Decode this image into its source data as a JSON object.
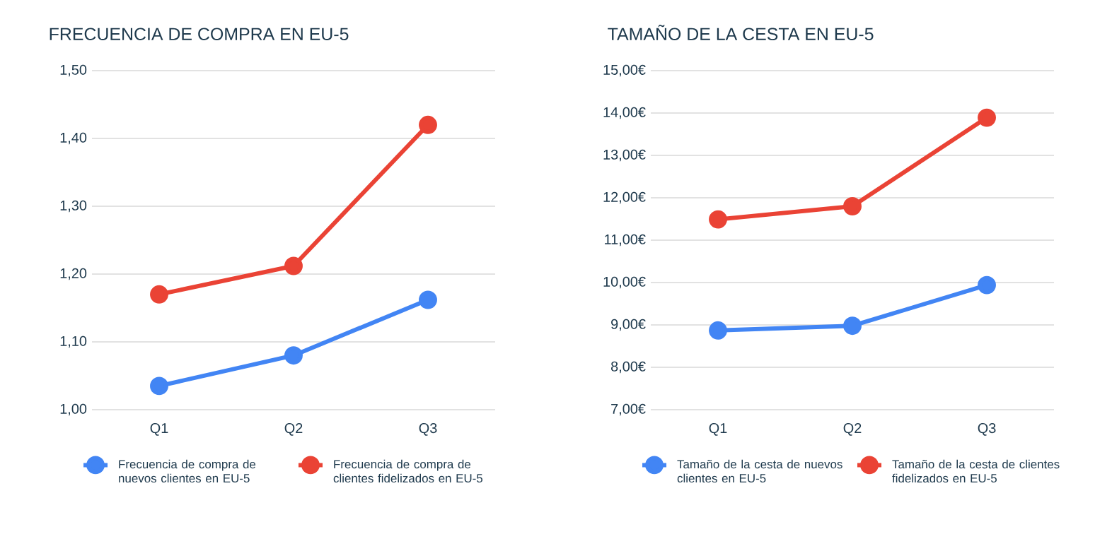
{
  "chart_data": [
    {
      "type": "line",
      "title": "FRECUENCIA DE COMPRA EN EU-5",
      "categories": [
        "Q1",
        "Q2",
        "Q3"
      ],
      "series": [
        {
          "name": "Frecuencia de compra de nuevos clientes en EU-5",
          "color": "#4285f4",
          "values": [
            1.035,
            1.08,
            1.162
          ]
        },
        {
          "name": "Frecuencia de compra de clientes fidelizados en EU-5",
          "color": "#ea4335",
          "values": [
            1.17,
            1.212,
            1.42
          ]
        }
      ],
      "ylim": [
        1.0,
        1.5
      ],
      "yticks": [
        {
          "value": 1.0,
          "label": "1,00"
        },
        {
          "value": 1.1,
          "label": "1,10"
        },
        {
          "value": 1.2,
          "label": "1,20"
        },
        {
          "value": 1.3,
          "label": "1,30"
        },
        {
          "value": 1.4,
          "label": "1,40"
        },
        {
          "value": 1.5,
          "label": "1,50"
        }
      ],
      "grid": "y",
      "legend": "bottom",
      "marker": "circle",
      "line_style": "solid"
    },
    {
      "type": "line",
      "title": "TAMAÑO DE LA CESTA EN EU-5",
      "categories": [
        "Q1",
        "Q2",
        "Q3"
      ],
      "series": [
        {
          "name": "Tamaño de la cesta de nuevos clientes en EU-5",
          "color": "#4285f4",
          "values": [
            8.87,
            8.98,
            9.94
          ]
        },
        {
          "name": "Tamaño de la cesta de clientes fidelizados en EU-5",
          "color": "#ea4335",
          "values": [
            11.49,
            11.8,
            13.89
          ]
        }
      ],
      "ylim": [
        7.0,
        15.0
      ],
      "yticks": [
        {
          "value": 7,
          "label": "7,00€"
        },
        {
          "value": 8,
          "label": "8,00€"
        },
        {
          "value": 9,
          "label": "9,00€"
        },
        {
          "value": 10,
          "label": "10,00€"
        },
        {
          "value": 11,
          "label": "11,00€"
        },
        {
          "value": 12,
          "label": "12,00€"
        },
        {
          "value": 13,
          "label": "13,00€"
        },
        {
          "value": 14,
          "label": "14,00€"
        },
        {
          "value": 15,
          "label": "15,00€"
        }
      ],
      "grid": "y",
      "legend": "bottom",
      "marker": "circle",
      "line_style": "solid"
    }
  ]
}
